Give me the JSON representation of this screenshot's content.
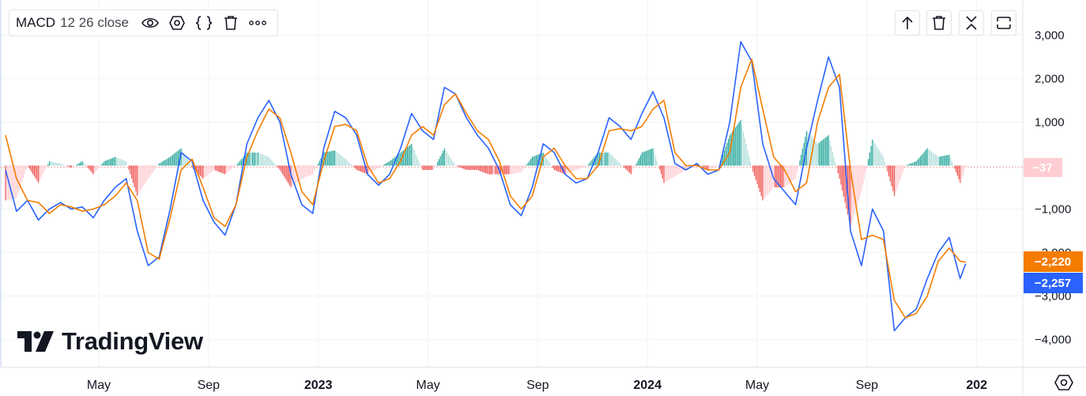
{
  "indicator": {
    "name": "MACD",
    "params": "12 26 close",
    "icons": [
      "eye-icon",
      "settings-hexagon-icon",
      "source-code-icon",
      "trash-icon",
      "more-icon"
    ]
  },
  "toolbar": {
    "icons": [
      "move-up-icon",
      "trash-icon",
      "collapse-icon",
      "maximize-icon"
    ]
  },
  "brand": {
    "name": "TradingView"
  },
  "colors": {
    "macd": "#2962ff",
    "signal": "#f57c00",
    "hist_pos_strong": "#26a69a",
    "hist_pos_weak": "#b2dfdb",
    "hist_neg_strong": "#ef5350",
    "hist_neg_weak": "#ffcdd2"
  },
  "chart_data": {
    "type": "line",
    "y_ticks": [
      "3,000",
      "2,000",
      "1,000",
      "0",
      "−1,000",
      "−2,000",
      "−3,000",
      "−4,000"
    ],
    "y_tick_values": [
      3000,
      2000,
      1000,
      0,
      -1000,
      -2000,
      -3000,
      -4000
    ],
    "ylim": [
      -4300,
      3200
    ],
    "x_ticks": [
      {
        "label": "May",
        "t": 3.4
      },
      {
        "label": "Sep",
        "t": 7.4
      },
      {
        "label": "2023",
        "t": 11.4,
        "bold": true
      },
      {
        "label": "May",
        "t": 15.4
      },
      {
        "label": "Sep",
        "t": 19.4
      },
      {
        "label": "2024",
        "t": 23.4,
        "bold": true
      },
      {
        "label": "May",
        "t": 27.4
      },
      {
        "label": "Sep",
        "t": 31.4
      },
      {
        "label": "202",
        "t": 35.4,
        "bold": true
      }
    ],
    "xlim": [
      0,
      36
    ],
    "grid": true,
    "series": [
      {
        "key": "macd",
        "points": [
          [
            0,
            -100
          ],
          [
            0.4,
            -1050
          ],
          [
            0.8,
            -800
          ],
          [
            1.2,
            -1250
          ],
          [
            1.6,
            -1000
          ],
          [
            2.0,
            -850
          ],
          [
            2.4,
            -1000
          ],
          [
            2.8,
            -950
          ],
          [
            3.2,
            -1200
          ],
          [
            3.6,
            -800
          ],
          [
            4.0,
            -500
          ],
          [
            4.4,
            -300
          ],
          [
            4.8,
            -1500
          ],
          [
            5.2,
            -2300
          ],
          [
            5.6,
            -2100
          ],
          [
            6.0,
            -1000
          ],
          [
            6.4,
            300
          ],
          [
            6.8,
            100
          ],
          [
            7.2,
            -800
          ],
          [
            7.6,
            -1300
          ],
          [
            8.0,
            -1600
          ],
          [
            8.4,
            -900
          ],
          [
            8.8,
            500
          ],
          [
            9.2,
            1100
          ],
          [
            9.6,
            1500
          ],
          [
            10.0,
            1000
          ],
          [
            10.4,
            -200
          ],
          [
            10.8,
            -900
          ],
          [
            11.2,
            -1100
          ],
          [
            11.6,
            400
          ],
          [
            12.0,
            1250
          ],
          [
            12.4,
            1100
          ],
          [
            12.8,
            700
          ],
          [
            13.2,
            -200
          ],
          [
            13.6,
            -450
          ],
          [
            14.0,
            -200
          ],
          [
            14.4,
            400
          ],
          [
            14.8,
            1200
          ],
          [
            15.2,
            800
          ],
          [
            15.6,
            600
          ],
          [
            16.0,
            1800
          ],
          [
            16.4,
            1650
          ],
          [
            16.8,
            1100
          ],
          [
            17.2,
            700
          ],
          [
            17.6,
            400
          ],
          [
            18.0,
            -100
          ],
          [
            18.4,
            -900
          ],
          [
            18.8,
            -1150
          ],
          [
            19.2,
            -500
          ],
          [
            19.6,
            500
          ],
          [
            20.0,
            300
          ],
          [
            20.4,
            -200
          ],
          [
            20.8,
            -400
          ],
          [
            21.2,
            -300
          ],
          [
            21.6,
            300
          ],
          [
            22.0,
            1100
          ],
          [
            22.4,
            900
          ],
          [
            22.8,
            600
          ],
          [
            23.2,
            1200
          ],
          [
            23.6,
            1700
          ],
          [
            24.0,
            1100
          ],
          [
            24.4,
            50
          ],
          [
            24.8,
            -100
          ],
          [
            25.2,
            50
          ],
          [
            25.6,
            -200
          ],
          [
            26.0,
            -100
          ],
          [
            26.4,
            1000
          ],
          [
            26.8,
            2850
          ],
          [
            27.2,
            2400
          ],
          [
            27.6,
            500
          ],
          [
            28.0,
            -300
          ],
          [
            28.4,
            -600
          ],
          [
            28.8,
            -900
          ],
          [
            29.2,
            400
          ],
          [
            29.6,
            1500
          ],
          [
            30.0,
            2500
          ],
          [
            30.4,
            1800
          ],
          [
            30.8,
            -1500
          ],
          [
            31.2,
            -2300
          ],
          [
            31.6,
            -1000
          ],
          [
            32.0,
            -1500
          ],
          [
            32.4,
            -3800
          ],
          [
            32.8,
            -3500
          ],
          [
            33.2,
            -3300
          ],
          [
            33.6,
            -2600
          ],
          [
            34.0,
            -2000
          ],
          [
            34.4,
            -1650
          ],
          [
            34.8,
            -2600
          ],
          [
            35.0,
            -2257
          ]
        ]
      },
      {
        "key": "signal",
        "points": [
          [
            0,
            700
          ],
          [
            0.4,
            -300
          ],
          [
            0.8,
            -800
          ],
          [
            1.2,
            -850
          ],
          [
            1.6,
            -1100
          ],
          [
            2.0,
            -900
          ],
          [
            2.4,
            -950
          ],
          [
            2.8,
            -1050
          ],
          [
            3.2,
            -1000
          ],
          [
            3.6,
            -900
          ],
          [
            4.0,
            -700
          ],
          [
            4.4,
            -400
          ],
          [
            4.8,
            -800
          ],
          [
            5.2,
            -2000
          ],
          [
            5.6,
            -2150
          ],
          [
            6.0,
            -1200
          ],
          [
            6.4,
            -100
          ],
          [
            6.8,
            150
          ],
          [
            7.2,
            -500
          ],
          [
            7.6,
            -1200
          ],
          [
            8.0,
            -1400
          ],
          [
            8.4,
            -900
          ],
          [
            8.8,
            200
          ],
          [
            9.2,
            800
          ],
          [
            9.6,
            1300
          ],
          [
            10.0,
            1100
          ],
          [
            10.4,
            300
          ],
          [
            10.8,
            -600
          ],
          [
            11.2,
            -900
          ],
          [
            11.6,
            100
          ],
          [
            12.0,
            900
          ],
          [
            12.4,
            950
          ],
          [
            12.8,
            800
          ],
          [
            13.2,
            0
          ],
          [
            13.6,
            -400
          ],
          [
            14.0,
            -300
          ],
          [
            14.4,
            100
          ],
          [
            14.8,
            700
          ],
          [
            15.2,
            900
          ],
          [
            15.6,
            700
          ],
          [
            16.0,
            1400
          ],
          [
            16.4,
            1650
          ],
          [
            16.8,
            1200
          ],
          [
            17.2,
            800
          ],
          [
            17.6,
            600
          ],
          [
            18.0,
            100
          ],
          [
            18.4,
            -700
          ],
          [
            18.8,
            -1000
          ],
          [
            19.2,
            -700
          ],
          [
            19.6,
            200
          ],
          [
            20.0,
            400
          ],
          [
            20.4,
            0
          ],
          [
            20.8,
            -300
          ],
          [
            21.2,
            -300
          ],
          [
            21.6,
            0
          ],
          [
            22.0,
            800
          ],
          [
            22.4,
            850
          ],
          [
            22.8,
            800
          ],
          [
            23.2,
            900
          ],
          [
            23.6,
            1300
          ],
          [
            24.0,
            1500
          ],
          [
            24.4,
            300
          ],
          [
            24.8,
            0
          ],
          [
            25.2,
            0
          ],
          [
            25.6,
            -100
          ],
          [
            26.0,
            -100
          ],
          [
            26.4,
            300
          ],
          [
            26.8,
            1800
          ],
          [
            27.2,
            2450
          ],
          [
            27.6,
            1300
          ],
          [
            28.0,
            200
          ],
          [
            28.4,
            -100
          ],
          [
            28.8,
            -600
          ],
          [
            29.2,
            -400
          ],
          [
            29.6,
            1000
          ],
          [
            30.0,
            1800
          ],
          [
            30.4,
            2100
          ],
          [
            30.8,
            -100
          ],
          [
            31.2,
            -1700
          ],
          [
            31.6,
            -1600
          ],
          [
            32.0,
            -1700
          ],
          [
            32.4,
            -3100
          ],
          [
            32.8,
            -3500
          ],
          [
            33.2,
            -3400
          ],
          [
            33.6,
            -3000
          ],
          [
            34.0,
            -2200
          ],
          [
            34.4,
            -1900
          ],
          [
            34.8,
            -2200
          ],
          [
            35.0,
            -2220
          ]
        ]
      }
    ],
    "histogram_dx": 0.05,
    "last_values": [
      {
        "key": "zero",
        "label": "−37",
        "value": -37,
        "color": "#ffcdd2",
        "text_color": "#131722"
      },
      {
        "key": "signal",
        "label": "−2,220",
        "value": -2220,
        "color": "#f57c00",
        "text_color": "#ffffff"
      },
      {
        "key": "macd",
        "label": "−2,257",
        "value": -2257,
        "color": "#2962ff",
        "text_color": "#ffffff"
      }
    ]
  }
}
